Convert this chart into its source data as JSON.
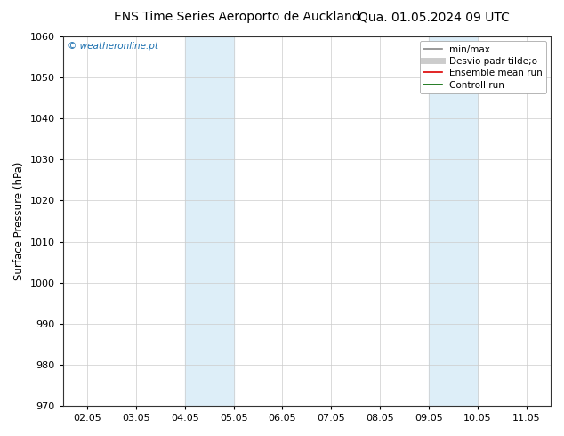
{
  "title_left": "ENS Time Series Aeroporto de Auckland",
  "title_right": "Qua. 01.05.2024 09 UTC",
  "ylabel": "Surface Pressure (hPa)",
  "ylim": [
    970,
    1060
  ],
  "yticks": [
    970,
    980,
    990,
    1000,
    1010,
    1020,
    1030,
    1040,
    1050,
    1060
  ],
  "x_labels": [
    "02.05",
    "03.05",
    "04.05",
    "05.05",
    "06.05",
    "07.05",
    "08.05",
    "09.05",
    "10.05",
    "11.05"
  ],
  "x_positions": [
    0,
    1,
    2,
    3,
    4,
    5,
    6,
    7,
    8,
    9
  ],
  "xlim": [
    -0.5,
    9.5
  ],
  "shaded_regions": [
    {
      "x_start": 2.0,
      "x_end": 3.0,
      "color": "#ddeef8"
    },
    {
      "x_start": 7.0,
      "x_end": 8.0,
      "color": "#ddeef8"
    }
  ],
  "watermark_text": "© weatheronline.pt",
  "watermark_color": "#1a6faf",
  "legend_entries": [
    {
      "label": "min/max",
      "color": "#888888",
      "lw": 1.2,
      "ls": "-"
    },
    {
      "label": "Desvio padr tilde;o",
      "color": "#cccccc",
      "lw": 5,
      "ls": "-"
    },
    {
      "label": "Ensemble mean run",
      "color": "#dd0000",
      "lw": 1.2,
      "ls": "-"
    },
    {
      "label": "Controll run",
      "color": "#006600",
      "lw": 1.2,
      "ls": "-"
    }
  ],
  "background_color": "#ffffff",
  "grid_color": "#cccccc",
  "title_fontsize": 10,
  "tick_fontsize": 8,
  "ylabel_fontsize": 8.5,
  "legend_fontsize": 7.5
}
